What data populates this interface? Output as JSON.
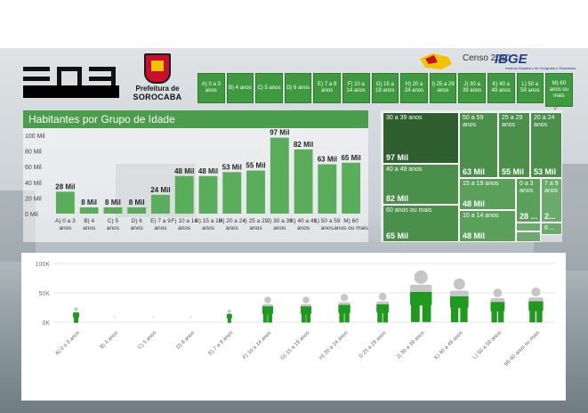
{
  "header": {
    "logo_text": "ENS",
    "prefeitura_line1": "Prefeitura de",
    "prefeitura_line2": "SOROCABA",
    "censo": "Censo 2010",
    "ibge": "IBGE",
    "ibge_sub": "Instituto Brasileiro de Geografia e Estatística"
  },
  "slicer": [
    "A) 0 a 3 anos",
    "B) 4 anos",
    "C) 5 anos",
    "D) 6 anos",
    "E) 7 a 9 anos",
    "F) 10 a 14 anos",
    "G) 15 a 19 anos",
    "H) 20 a 24 anos",
    "I) 25 a 29 anos",
    "J) 30 a 39 anos",
    "K) 40 a 49 anos",
    "L) 50 a 59 anos",
    "M) 60 anos ou mais"
  ],
  "colors": {
    "green": "#4a9d4a",
    "dark_green": "#2f6e2f",
    "gray_figure": "#c6c6c6",
    "figure_green": "#1f9a1f"
  },
  "chart_data": [
    {
      "type": "bar",
      "title": "Habitantes por Grupo de Idade",
      "categories": [
        "A) 0 a 3 anos",
        "B) 4 anos",
        "C) 5 anos",
        "D) 6 anos",
        "E) 7 a 9 anos",
        "F) 10 a 14 anos",
        "G) 15 a 19 anos",
        "H) 20 a 24 anos",
        "I) 25 a 29 anos",
        "J) 30 a 39 anos",
        "K) 40 a 49 anos",
        "L) 50 a 59 anos",
        "M) 60 anos ou mais"
      ],
      "values": [
        28,
        8,
        8,
        8,
        24,
        48,
        48,
        53,
        55,
        97,
        82,
        63,
        65
      ],
      "value_labels": [
        "28 Mil",
        "8 Mil",
        "8 Mil",
        "8 Mil",
        "24 Mil",
        "48 Mil",
        "48 Mil",
        "53 Mil",
        "55 Mil",
        "97 Mil",
        "82 Mil",
        "63 Mil",
        "65 Mil"
      ],
      "yticks": [
        "0 Mil",
        "20 Mil",
        "40 Mil",
        "60 Mil",
        "80 Mil",
        "100 Mil"
      ],
      "ylim": [
        0,
        100
      ]
    },
    {
      "type": "treemap",
      "tiles": [
        {
          "label": "30 a 39 anos",
          "value": "97 Mil"
        },
        {
          "label": "40 a 49 anos",
          "value": "82 Mil"
        },
        {
          "label": "60 anos ou mais",
          "value": "65 Mil"
        },
        {
          "label": "50 a 59 anos",
          "value": "63 Mil"
        },
        {
          "label": "25 a 29 anos",
          "value": "55 Mil"
        },
        {
          "label": "20 a 24 anos",
          "value": "53 Mil"
        },
        {
          "label": "15 a 19 anos",
          "value": "48 Mil"
        },
        {
          "label": "10 a 14 anos",
          "value": "48 Mil"
        },
        {
          "label": "0 a 3 anos",
          "value": "28 ..."
        },
        {
          "label": "7 a 9 anos",
          "value": "2..."
        },
        {
          "label": "6 ...",
          "value": ""
        },
        {
          "label": "",
          "value": ""
        },
        {
          "label": "",
          "value": ""
        }
      ]
    },
    {
      "type": "pictograph",
      "categories": [
        "A) 0 a 3 anos",
        "B) 4 anos",
        "C) 5 anos",
        "D) 6 anos",
        "E) 7 a 9 anos",
        "F) 10 a 14 anos",
        "G) 15 a 19 anos",
        "H) 20 a 24 anos",
        "I) 25 a 29 anos",
        "J) 30 a 39 anos",
        "K) 40 a 49 anos",
        "L) 50 a 59 anos",
        "M) 60 anos ou mais"
      ],
      "values": [
        28000,
        8000,
        8000,
        8000,
        24000,
        48000,
        48000,
        53000,
        55000,
        97000,
        82000,
        63000,
        65000
      ],
      "yticks": [
        "0K",
        "50K",
        "100K"
      ],
      "ylim": [
        0,
        100000
      ]
    }
  ]
}
